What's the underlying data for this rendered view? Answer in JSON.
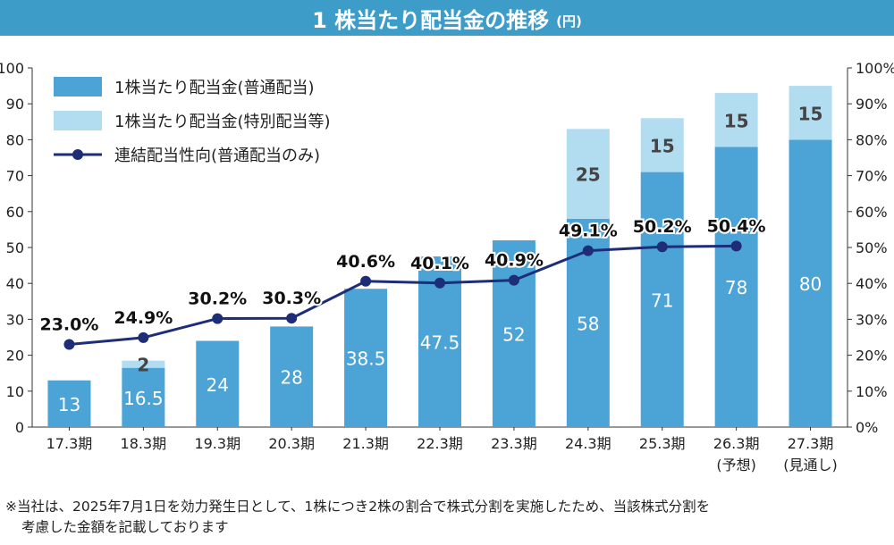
{
  "header": {
    "title": "1 株当たり配当金の推移",
    "unit": "(円)"
  },
  "colors": {
    "title_bg": "#3d9cc8",
    "ordinary": "#4ba3d6",
    "special": "#b2dcf0",
    "payout_line": "#1e2d78",
    "text": "#222222"
  },
  "chart_data": {
    "type": "bar",
    "stacked": true,
    "categories": [
      "17.3期",
      "18.3期",
      "19.3期",
      "20.3期",
      "21.3期",
      "22.3期",
      "23.3期",
      "24.3期",
      "25.3期",
      "26.3期",
      "27.3期"
    ],
    "category_notes": [
      "",
      "",
      "",
      "",
      "",
      "",
      "",
      "",
      "",
      "(予想)",
      "(見通し)"
    ],
    "series": [
      {
        "name": "1株当たり配当金(普通配当)",
        "type": "bar",
        "axis": "left",
        "values": [
          13,
          16.5,
          24,
          28,
          38.5,
          47.5,
          52,
          58,
          71,
          78,
          80
        ],
        "labels": [
          "13",
          "16.5",
          "24",
          "28",
          "38.5",
          "47.5",
          "52",
          "58",
          "71",
          "78",
          "80"
        ]
      },
      {
        "name": "1株当たり配当金(特別配当等)",
        "type": "bar",
        "axis": "left",
        "values": [
          0,
          2,
          0,
          0,
          0,
          0,
          0,
          25,
          15,
          15,
          15
        ],
        "labels": [
          "",
          "2",
          "",
          "",
          "",
          "",
          "",
          "25",
          "15",
          "15",
          "15"
        ]
      },
      {
        "name": "連結配当性向(普通配当のみ)",
        "type": "line",
        "axis": "right",
        "values": [
          23.0,
          24.9,
          30.2,
          30.3,
          40.6,
          40.1,
          40.9,
          49.1,
          50.2,
          50.4,
          null
        ],
        "labels": [
          "23.0%",
          "24.9%",
          "30.2%",
          "30.3%",
          "40.6%",
          "40.1%",
          "40.9%",
          "49.1%",
          "50.2%",
          "50.4%",
          ""
        ]
      }
    ],
    "ylim": [
      0,
      100
    ],
    "yticks": [
      "0",
      "10",
      "20",
      "30",
      "40",
      "50",
      "60",
      "70",
      "80",
      "90",
      "100"
    ],
    "y2lim": [
      0,
      100
    ],
    "y2ticks": [
      "0%",
      "10%",
      "20%",
      "30%",
      "40%",
      "50%",
      "60%",
      "70%",
      "80%",
      "90%",
      "100%"
    ],
    "grid": false,
    "legend_position": "top-left"
  },
  "footnote": {
    "line1": "※当社は、2025年7月1日を効力発生日として、1株につき2株の割合で株式分割を実施したため、当該株式分割を",
    "line2": "考慮した金額を記載しております"
  }
}
